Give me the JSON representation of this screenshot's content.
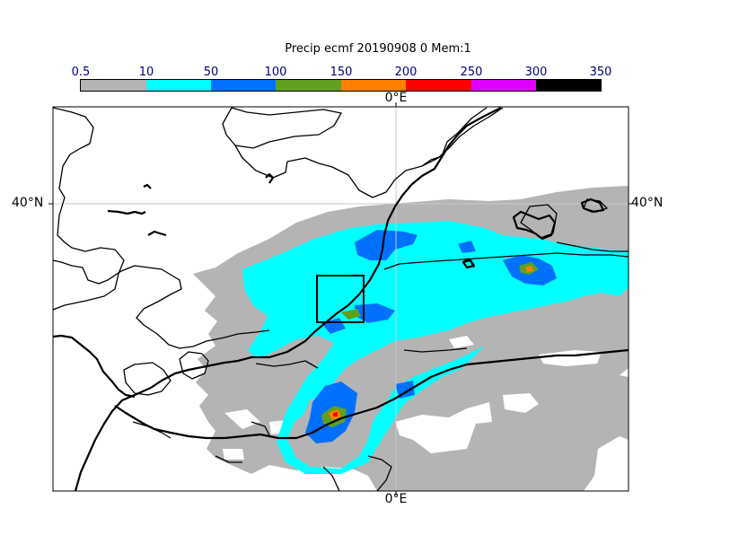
{
  "title": "Precip ecmf 20190908 0 Mem:1",
  "colorbar": {
    "ticks": [
      "0.5",
      "10",
      "50",
      "100",
      "150",
      "200",
      "250",
      "300",
      "350"
    ],
    "colors": [
      "#b4b4b4",
      "#00ffff",
      "#0070ff",
      "#60a020",
      "#ff8000",
      "#ff0000",
      "#e000ff",
      "#000000"
    ]
  },
  "axes": {
    "lon_top": "0°E",
    "lon_bottom": "0°E",
    "lat_left": "40°N",
    "lat_right": "40°N"
  },
  "colors": {
    "background": "#ffffff",
    "grid": "#c8c8c8",
    "coast": "#000000"
  }
}
